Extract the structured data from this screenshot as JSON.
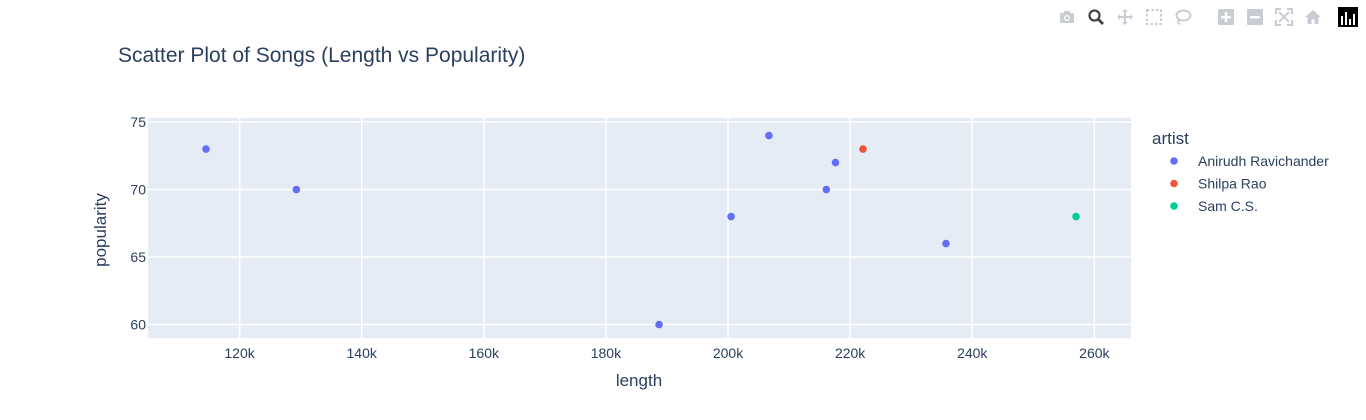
{
  "modebar": {
    "icons": [
      "camera-icon",
      "zoom-icon",
      "pan-icon",
      "box-select-icon",
      "lasso-icon",
      "zoom-in-icon",
      "zoom-out-icon",
      "autoscale-icon",
      "reset-axes-icon",
      "plotly-logo-icon"
    ]
  },
  "chart_data": {
    "type": "scatter",
    "title": "Scatter Plot of Songs (Length vs Popularity)",
    "xlabel": "length",
    "ylabel": "popularity",
    "legend_title": "artist",
    "legend_placement": "right",
    "grid": true,
    "xlim": [
      105000,
      266000
    ],
    "ylim": [
      59,
      75.3
    ],
    "x_ticks": [
      120000,
      140000,
      160000,
      180000,
      200000,
      220000,
      240000,
      260000
    ],
    "x_tick_labels": [
      "120k",
      "140k",
      "160k",
      "180k",
      "200k",
      "220k",
      "240k",
      "260k"
    ],
    "y_ticks": [
      60,
      65,
      70,
      75
    ],
    "y_tick_labels": [
      "60",
      "65",
      "70",
      "75"
    ],
    "series": [
      {
        "name": "Anirudh Ravichander",
        "color": "#636efa",
        "points": [
          {
            "x": 114500,
            "y": 73
          },
          {
            "x": 129300,
            "y": 70
          },
          {
            "x": 188700,
            "y": 60
          },
          {
            "x": 200500,
            "y": 68
          },
          {
            "x": 206700,
            "y": 74
          },
          {
            "x": 216100,
            "y": 70
          },
          {
            "x": 217600,
            "y": 72
          },
          {
            "x": 235700,
            "y": 66
          }
        ]
      },
      {
        "name": "Shilpa Rao",
        "color": "#ef553b",
        "points": [
          {
            "x": 222100,
            "y": 73
          }
        ]
      },
      {
        "name": "Sam C.S.",
        "color": "#00cc96",
        "points": [
          {
            "x": 257000,
            "y": 68
          }
        ]
      }
    ]
  }
}
